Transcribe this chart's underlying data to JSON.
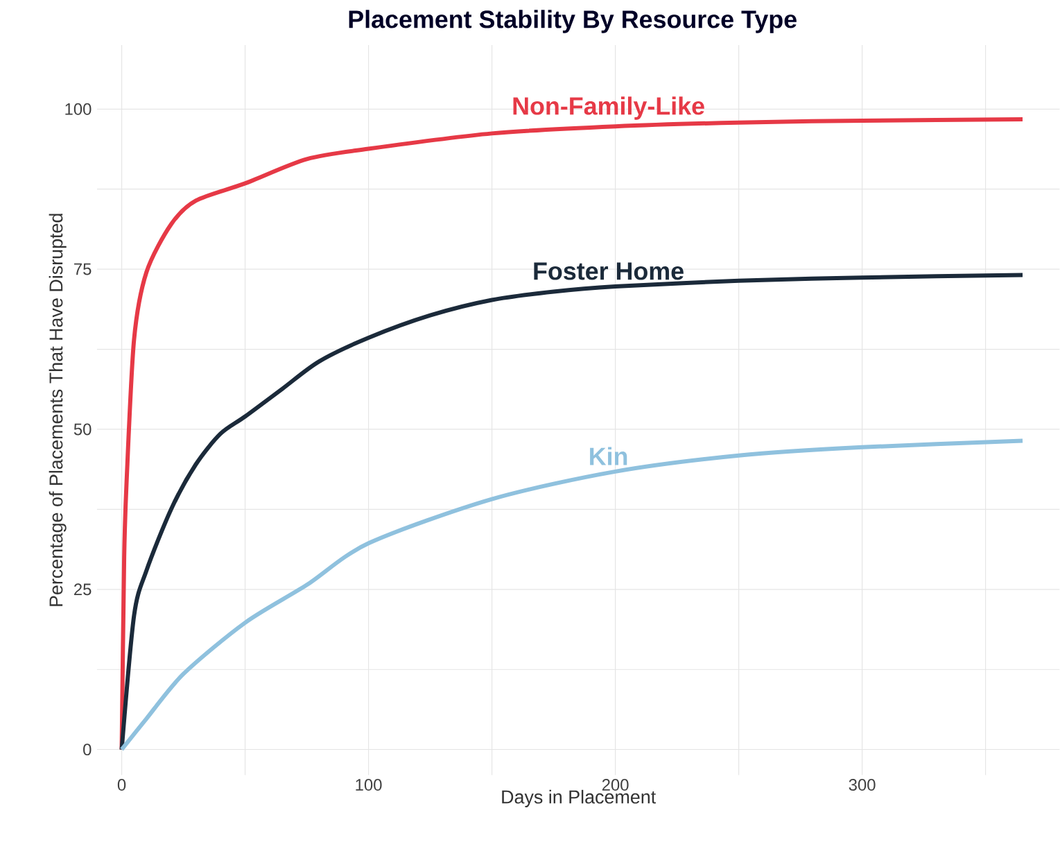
{
  "chart_data": {
    "type": "line",
    "title": "Placement Stability By Resource Type",
    "xlabel": "Days in Placement",
    "ylabel": "Percentage of Placements That Have Disrupted",
    "xlim": [
      -10,
      380
    ],
    "ylim": [
      -4,
      110
    ],
    "xticks": [
      0,
      100,
      200,
      300,
      {
        "value": 50,
        "label": null
      },
      {
        "value": 150,
        "label": null
      },
      {
        "value": 250,
        "label": null
      },
      {
        "value": 350,
        "label": null
      }
    ],
    "yticks": [
      0,
      25,
      50,
      75,
      100,
      {
        "value": 12.5,
        "label": null
      },
      {
        "value": 37.5,
        "label": null
      },
      {
        "value": 62.5,
        "label": null
      },
      {
        "value": 87.5,
        "label": null
      }
    ],
    "grid": true,
    "series": [
      {
        "name": "Non-Family-Like",
        "color": "#e63946",
        "x": [
          0,
          1,
          2,
          5,
          10,
          20,
          30,
          50,
          75,
          100,
          150,
          200,
          250,
          300,
          365
        ],
        "values": [
          0,
          30,
          42,
          64,
          74.5,
          82,
          85.7,
          88.4,
          92.2,
          93.8,
          96.2,
          97.3,
          97.9,
          98.2,
          98.4
        ]
      },
      {
        "name": "Foster Home",
        "color": "#1b2a3a",
        "x": [
          0,
          5,
          10,
          20,
          30,
          40,
          50,
          65,
          80,
          100,
          125,
          150,
          175,
          200,
          250,
          300,
          365
        ],
        "values": [
          0,
          20.9,
          27.9,
          37.5,
          44.5,
          49.3,
          52,
          56.3,
          60.6,
          64.3,
          67.8,
          70.2,
          71.5,
          72.3,
          73.2,
          73.7,
          74.1
        ]
      },
      {
        "name": "Kin",
        "color": "#8fc1de",
        "x": [
          0,
          10,
          25,
          50,
          75,
          100,
          150,
          200,
          250,
          300,
          365
        ],
        "values": [
          0,
          4.8,
          11.8,
          19.8,
          25.7,
          32.2,
          39.1,
          43.4,
          45.9,
          47.2,
          48.2
        ]
      }
    ]
  }
}
